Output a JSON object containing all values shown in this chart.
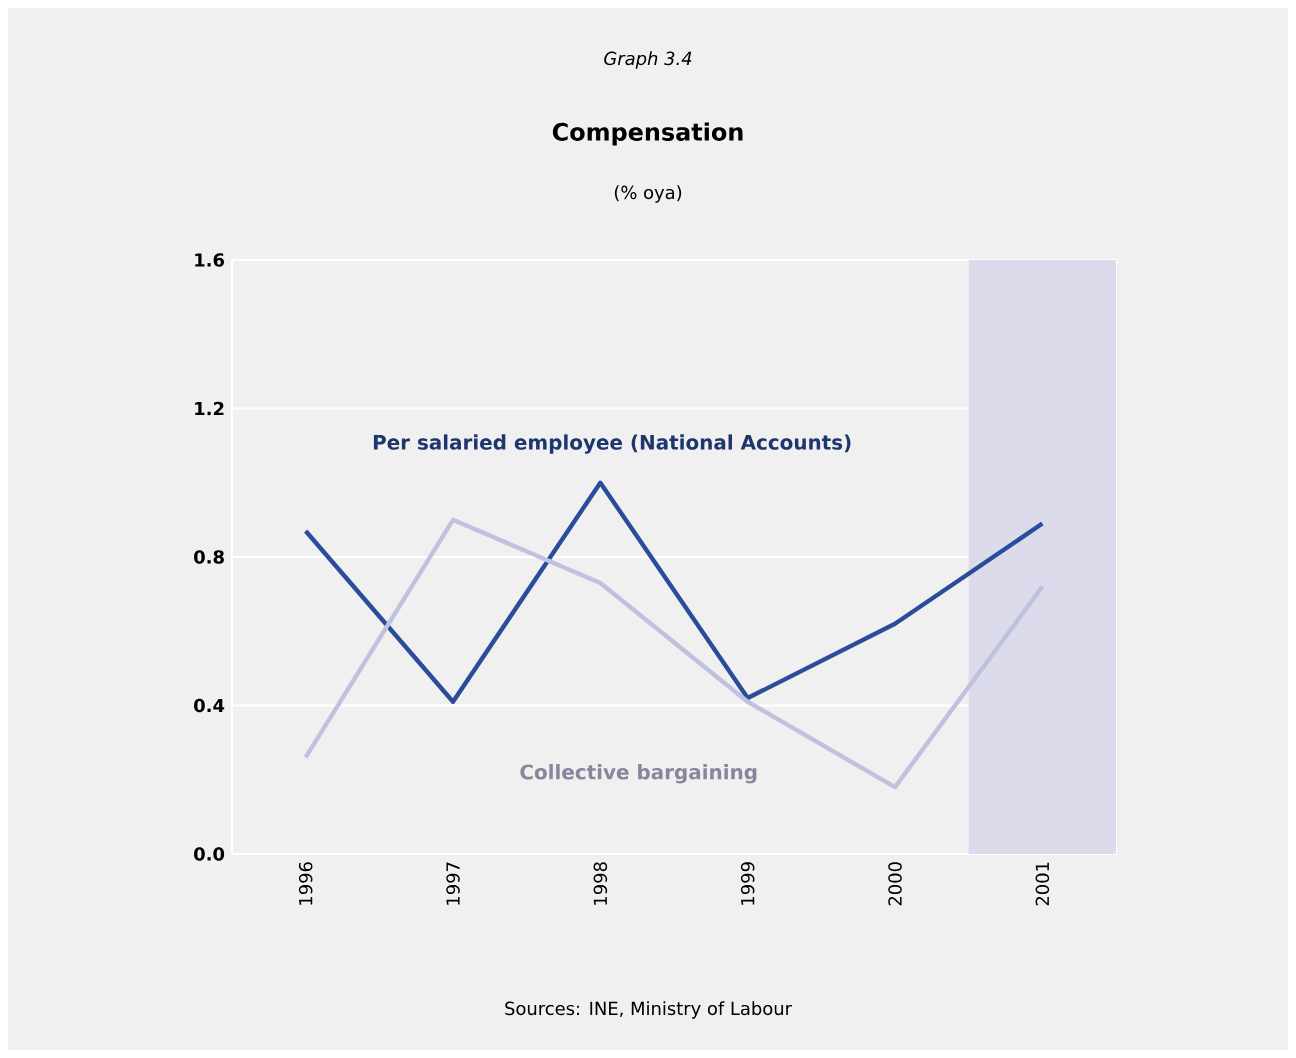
{
  "chart_data": {
    "type": "line",
    "title": "Compensation",
    "subtitle": "(% oya)",
    "annotations": [
      "Graph 3.4",
      "Sources: INE, Ministry of Labour"
    ],
    "x": [
      1996,
      1997,
      1998,
      1999,
      2000,
      2001
    ],
    "xlim": [
      1995.5,
      2001.5
    ],
    "xticks": [
      1996,
      1997,
      1998,
      1999,
      2000,
      2001
    ],
    "ylim": [
      0,
      1.6
    ],
    "yticks": [
      {
        "value": 0,
        "label": "0.0"
      },
      0.4,
      0.8,
      1.2,
      1.6
    ],
    "grid": "y",
    "bands": [
      {
        "axis": "x",
        "from": 2000.5,
        "to": 2001.5,
        "color": "#dcdbec"
      }
    ],
    "series": [
      {
        "name": "Per salaried employee (National Accounts)",
        "color": "#2a4d9b",
        "values": [
          0.87,
          0.41,
          1.0,
          0.42,
          0.62,
          0.89
        ]
      },
      {
        "name": "Collective bargaining",
        "color": "#c0c1df",
        "values": [
          0.26,
          0.9,
          0.73,
          0.41,
          0.18,
          0.72
        ]
      }
    ]
  }
}
